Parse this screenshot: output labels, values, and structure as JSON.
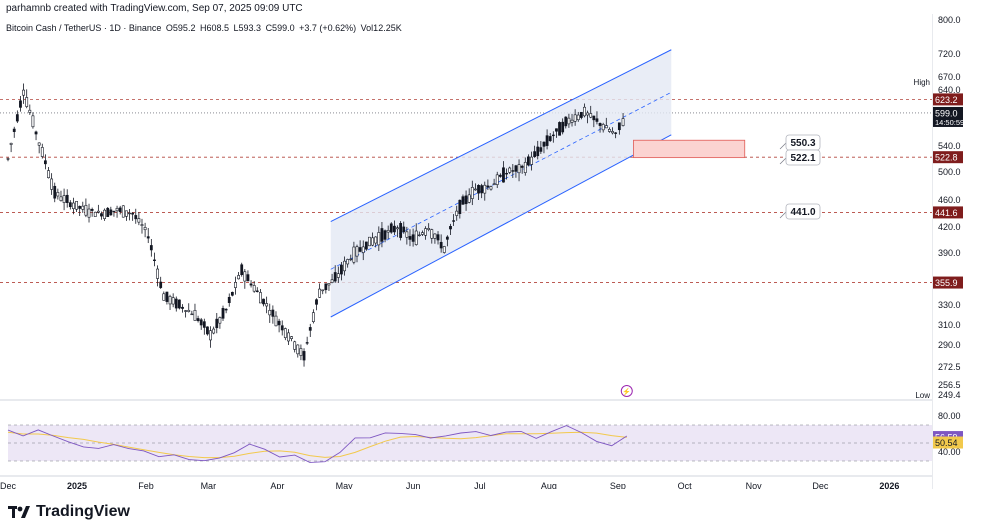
{
  "header": {
    "credit": "parhamnb created with TradingView.com, Sep 07, 2025 09:09 UTC"
  },
  "legend": {
    "symbol": "Bitcoin Cash / TetherUS · 1D · Binance",
    "open": "O595.2",
    "high": "H608.5",
    "low": "L593.3",
    "close": "C599.0",
    "change": "+3.7 (+0.62%)",
    "volume": "Vol12.25K"
  },
  "colors": {
    "candle": "#131722",
    "channel_line": "#2962ff",
    "channel_fill": "#e3e8f4",
    "level_line": "#b2443c",
    "level_badge": "#7f1d1d",
    "zone_fill": "#fbd3d1",
    "zone_border": "#e05a55",
    "rsi_line": "#7e57c2",
    "rsi_ma": "#f2c94c",
    "rsi_band": "#ede7f6"
  },
  "chart_data": {
    "type": "candlestick",
    "title": "Bitcoin Cash / TetherUS · 1D · Binance",
    "x_tick_labels": [
      "Dec",
      "2025",
      "Feb",
      "Mar",
      "Apr",
      "May",
      "Jun",
      "Jul",
      "Aug",
      "Sep",
      "Oct",
      "Nov",
      "Dec",
      "2026"
    ],
    "y_tick_labels": [
      "800.0",
      "720.0",
      "670.0",
      "640.0",
      "540.0",
      "500.0",
      "460.0",
      "420.0",
      "390.0",
      "330.0",
      "310.0",
      "290.0",
      "272.5",
      "256.5"
    ],
    "ylim": [
      249.4,
      800.0
    ],
    "price_path": [
      {
        "date": "2024-12-01",
        "close": 520
      },
      {
        "date": "2024-12-08",
        "close": 640
      },
      {
        "date": "2024-12-15",
        "close": 545
      },
      {
        "date": "2024-12-22",
        "close": 470
      },
      {
        "date": "2024-12-29",
        "close": 455
      },
      {
        "date": "2025-01-05",
        "close": 445
      },
      {
        "date": "2025-01-12",
        "close": 440
      },
      {
        "date": "2025-01-19",
        "close": 445
      },
      {
        "date": "2025-01-26",
        "close": 440
      },
      {
        "date": "2025-02-02",
        "close": 410
      },
      {
        "date": "2025-02-09",
        "close": 340
      },
      {
        "date": "2025-02-16",
        "close": 330
      },
      {
        "date": "2025-02-23",
        "close": 320
      },
      {
        "date": "2025-03-02",
        "close": 300
      },
      {
        "date": "2025-03-09",
        "close": 325
      },
      {
        "date": "2025-03-16",
        "close": 370
      },
      {
        "date": "2025-03-23",
        "close": 345
      },
      {
        "date": "2025-03-30",
        "close": 320
      },
      {
        "date": "2025-04-06",
        "close": 300
      },
      {
        "date": "2025-04-13",
        "close": 280
      },
      {
        "date": "2025-04-20",
        "close": 345
      },
      {
        "date": "2025-04-27",
        "close": 360
      },
      {
        "date": "2025-05-04",
        "close": 385
      },
      {
        "date": "2025-05-11",
        "close": 400
      },
      {
        "date": "2025-05-18",
        "close": 410
      },
      {
        "date": "2025-05-25",
        "close": 420
      },
      {
        "date": "2025-06-01",
        "close": 405
      },
      {
        "date": "2025-06-08",
        "close": 420
      },
      {
        "date": "2025-06-15",
        "close": 395
      },
      {
        "date": "2025-06-22",
        "close": 450
      },
      {
        "date": "2025-06-29",
        "close": 475
      },
      {
        "date": "2025-07-06",
        "close": 480
      },
      {
        "date": "2025-07-13",
        "close": 500
      },
      {
        "date": "2025-07-20",
        "close": 505
      },
      {
        "date": "2025-07-27",
        "close": 530
      },
      {
        "date": "2025-08-03",
        "close": 560
      },
      {
        "date": "2025-08-10",
        "close": 585
      },
      {
        "date": "2025-08-17",
        "close": 600
      },
      {
        "date": "2025-08-24",
        "close": 580
      },
      {
        "date": "2025-08-31",
        "close": 560
      },
      {
        "date": "2025-09-05",
        "close": 599
      }
    ],
    "levels": [
      {
        "label": "623.2",
        "value": 623.2
      },
      {
        "label": "522.8",
        "value": 522.8
      },
      {
        "label": "441.6",
        "value": 441.6
      },
      {
        "label": "355.9",
        "value": 355.9
      }
    ],
    "current_price": {
      "label": "599.0",
      "countdown": "14:50:59",
      "value": 599.0
    },
    "high_label": "High",
    "low_label": "Low",
    "low_value": "249.4",
    "callouts": [
      "550.3",
      "522.1",
      "441.0"
    ],
    "target_zone": {
      "from": 522.1,
      "to": 550.3
    },
    "channel": {
      "lower_start": {
        "date": "2025-04-25",
        "price": 318
      },
      "lower_end": {
        "date": "2025-09-25",
        "price": 560
      },
      "width_price": 110
    },
    "rsi": {
      "y_tick_labels": [
        "80.00",
        "40.00"
      ],
      "ylim": [
        20,
        90
      ],
      "rsi_value": "56.59",
      "ma_value": "50.54",
      "values": [
        62,
        58,
        60,
        54,
        52,
        50,
        48,
        44,
        40,
        38,
        36,
        34,
        32,
        33,
        36,
        40,
        45,
        42,
        38,
        34,
        30,
        34,
        42,
        52,
        56,
        58,
        60,
        55,
        52,
        54,
        58,
        60,
        61,
        62,
        58,
        60,
        63,
        65,
        60,
        56,
        52,
        57
      ]
    }
  }
}
